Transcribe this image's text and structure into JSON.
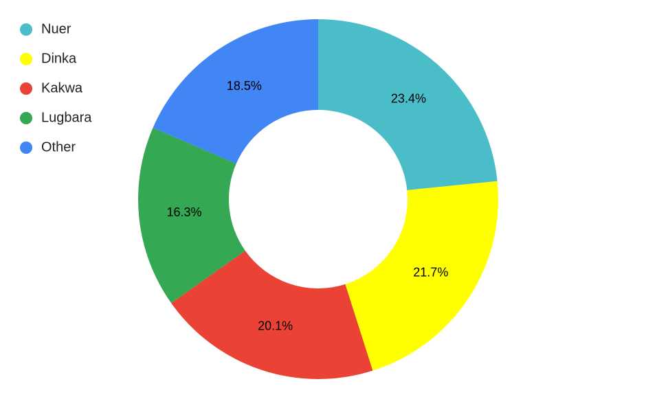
{
  "chart_data": {
    "type": "donut",
    "categories": [
      "Nuer",
      "Dinka",
      "Kakwa",
      "Lugbara",
      "Other"
    ],
    "values": [
      23.4,
      21.7,
      20.1,
      16.3,
      18.5
    ],
    "value_labels": [
      "23.4%",
      "21.7%",
      "20.1%",
      "16.3%",
      "18.5%"
    ],
    "colors": [
      "#4bbdc8",
      "#ffff00",
      "#ea4335",
      "#34a853",
      "#4285f4"
    ],
    "legend": "top-left"
  }
}
